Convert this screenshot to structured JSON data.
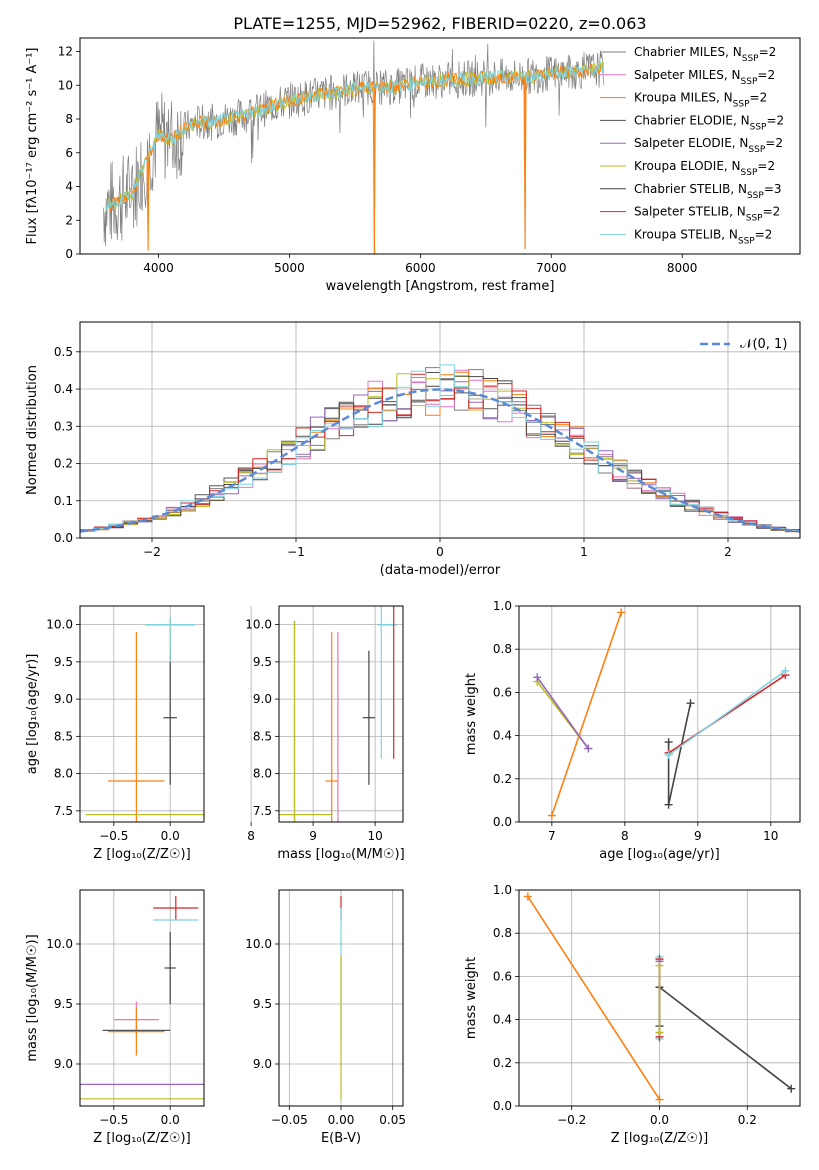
{
  "figure_title": "PLATE=1255, MJD=52962, FIBERID=0220, z=0.063",
  "series_styles": [
    {
      "name": "Chabrier MILES",
      "nssp": "2",
      "color": "#7f7f7f"
    },
    {
      "name": "Salpeter MILES",
      "nssp": "2",
      "color": "#e377c2"
    },
    {
      "name": "Kroupa MILES",
      "nssp": "2",
      "color": "#ff7f0e"
    },
    {
      "name": "Chabrier ELODIE",
      "nssp": "2",
      "color": "#555555"
    },
    {
      "name": "Salpeter ELODIE",
      "nssp": "2",
      "color": "#9467bd"
    },
    {
      "name": "Kroupa ELODIE",
      "nssp": "2",
      "color": "#bcbd22"
    },
    {
      "name": "Chabrier STELIB",
      "nssp": "3",
      "color": "#444444"
    },
    {
      "name": "Salpeter STELIB",
      "nssp": "2",
      "color": "#d62728"
    },
    {
      "name": "Kroupa STELIB",
      "nssp": "2",
      "color": "#7fd3e0"
    }
  ],
  "chart_data": [
    {
      "id": "spectrum",
      "type": "line",
      "xlabel": "wavelength [Angstrom, rest frame]",
      "ylabel": "Flux [fλ10⁻¹⁷ erg cm⁻² s⁻¹ A⁻¹]",
      "xlim": [
        3400,
        8900
      ],
      "ylim": [
        0,
        12.8
      ],
      "xticks": [
        "4000",
        "5000",
        "6000",
        "7000",
        "8000"
      ],
      "yticks": [
        "0",
        "2",
        "4",
        "6",
        "8",
        "10",
        "12"
      ],
      "legend_position": "right",
      "continuum": {
        "x": [
          3600,
          3700,
          3800,
          3900,
          4000,
          4100,
          4200,
          4300,
          4400,
          4500,
          4600,
          4800,
          5000,
          5200,
          5400,
          5600,
          5800,
          6000,
          6200,
          6400,
          6600,
          6800,
          7000,
          7200,
          7400
        ],
        "y": [
          2.8,
          3.2,
          3.6,
          5.5,
          7.0,
          6.8,
          7.4,
          7.8,
          7.8,
          8.0,
          8.1,
          8.6,
          9.1,
          9.4,
          9.7,
          9.9,
          9.9,
          10.2,
          10.3,
          10.4,
          10.5,
          10.5,
          10.7,
          10.8,
          11.0
        ]
      },
      "model_dips": [
        {
          "x": 5650,
          "y": 0
        },
        {
          "x": 6800,
          "y": 0.3
        },
        {
          "x": 3920,
          "y": 0.2
        }
      ]
    },
    {
      "id": "residuals",
      "type": "bar",
      "xlabel": "(data-model)/error",
      "ylabel": "Normed distribution",
      "xlim": [
        -2.5,
        2.5
      ],
      "ylim": [
        0,
        0.58
      ],
      "xticks": [
        "−2",
        "−1",
        "0",
        "1",
        "2"
      ],
      "yticks": [
        "0.0",
        "0.1",
        "0.2",
        "0.3",
        "0.4",
        "0.5"
      ],
      "grid": true,
      "legend_position": "top-right",
      "reference_label": "𝒩(0, 1)",
      "reference_color": "#5b8bd6",
      "bin_edges_start": -2.5,
      "bin_width": 0.1
    },
    {
      "id": "z-vs-age",
      "type": "scatter",
      "xlabel": "Z [log₁₀(Z/Z☉)]",
      "ylabel": "age  [log₁₀(age/yr)]",
      "xlim": [
        -0.8,
        0.3
      ],
      "ylim": [
        7.35,
        10.25
      ],
      "xticks": [
        "−0.5",
        "0.0"
      ],
      "yticks": [
        "7.5",
        "8.0",
        "8.5",
        "9.0",
        "9.5",
        "10.0"
      ],
      "grid": true,
      "points": [
        {
          "x": 0.0,
          "y": 10.0,
          "xerr": 0.22,
          "yerr": 0,
          "color": "#d62728"
        },
        {
          "x": 0.0,
          "y": 10.0,
          "xerr": 0.22,
          "yerr": 0,
          "color": "#7fd3e0"
        },
        {
          "x": 0.0,
          "y": 8.75,
          "xerr": 0.06,
          "yerr": 0.9,
          "color": "#444444"
        },
        {
          "x": -0.3,
          "y": 7.9,
          "xerr": 0.25,
          "yerr": 2.0,
          "color": "#ff7f0e"
        },
        {
          "x": 0.0,
          "y": 7.45,
          "xerr": 0.75,
          "yerr": 0,
          "color": "#9467bd"
        },
        {
          "x": 0.0,
          "y": 7.45,
          "xerr": 0.75,
          "yerr": 0,
          "color": "#bcbd22"
        },
        {
          "x": 0.0,
          "y": 9.8,
          "xerr": 0,
          "yerr": 0.3,
          "color": "#bcbd22"
        },
        {
          "x": 0.0,
          "y": 9.8,
          "xerr": 0,
          "yerr": 0.3,
          "color": "#7fd3e0"
        }
      ]
    },
    {
      "id": "mass-vs-age",
      "type": "scatter",
      "xlabel": "mass [log₁₀(M/M☉)]",
      "ylabel": "",
      "xlim": [
        8.45,
        10.45
      ],
      "ylim": [
        7.35,
        10.25
      ],
      "xticks": [
        "8",
        "9",
        "10"
      ],
      "yticks": [
        "7.5",
        "8.0",
        "8.5",
        "9.0",
        "9.5",
        "10.0"
      ],
      "grid": true,
      "points": [
        {
          "x": 10.2,
          "y": 10.0,
          "xerr": 0.15,
          "yerr": 0,
          "color": "#d62728"
        },
        {
          "x": 10.2,
          "y": 10.0,
          "xerr": 0.15,
          "yerr": 0,
          "color": "#7fd3e0"
        },
        {
          "x": 9.9,
          "y": 8.75,
          "xerr": 0.1,
          "yerr": 0.9,
          "color": "#444444"
        },
        {
          "x": 9.3,
          "y": 7.9,
          "xerr": 0.1,
          "yerr": 2.0,
          "color": "#ff7f0e"
        },
        {
          "x": 9.4,
          "y": 8.5,
          "xerr": 0,
          "yerr": 1.4,
          "color": "#e377c2"
        },
        {
          "x": 8.7,
          "y": 7.45,
          "xerr": 0.6,
          "yerr": 2.6,
          "color": "#9467bd"
        },
        {
          "x": 8.7,
          "y": 7.45,
          "xerr": 0.6,
          "yerr": 2.6,
          "color": "#bcbd22"
        },
        {
          "x": 10.3,
          "y": 9.4,
          "xerr": 0,
          "yerr": 1.2,
          "color": "#d62728"
        },
        {
          "x": 10.1,
          "y": 9.4,
          "xerr": 0,
          "yerr": 1.2,
          "color": "#7fd3e0"
        }
      ]
    },
    {
      "id": "age-weights",
      "type": "line",
      "xlabel": "age  [log₁₀(age/yr)]",
      "ylabel": "mass weight",
      "xlim": [
        6.55,
        10.4
      ],
      "ylim": [
        0,
        1.0
      ],
      "xticks": [
        "7",
        "8",
        "9",
        "10"
      ],
      "yticks": [
        "0.0",
        "0.2",
        "0.4",
        "0.6",
        "0.8",
        "1.0"
      ],
      "grid": true,
      "series": [
        {
          "color": "#ff7f0e",
          "x": [
            7.0,
            7.95
          ],
          "y": [
            0.03,
            0.97
          ]
        },
        {
          "color": "#bcbd22",
          "x": [
            6.8,
            7.5
          ],
          "y": [
            0.65,
            0.34
          ]
        },
        {
          "color": "#9467bd",
          "x": [
            6.8,
            7.5
          ],
          "y": [
            0.67,
            0.34
          ]
        },
        {
          "color": "#444444",
          "x": [
            8.6,
            8.6,
            8.9
          ],
          "y": [
            0.37,
            0.08,
            0.55
          ]
        },
        {
          "color": "#d62728",
          "x": [
            8.6,
            10.2
          ],
          "y": [
            0.32,
            0.68
          ]
        },
        {
          "color": "#7fd3e0",
          "x": [
            8.6,
            10.2
          ],
          "y": [
            0.31,
            0.7
          ]
        }
      ]
    },
    {
      "id": "z-vs-mass",
      "type": "scatter",
      "xlabel": "Z [log₁₀(Z/Z☉)]",
      "ylabel": "mass [log₁₀(M/M☉)]",
      "xlim": [
        -0.8,
        0.3
      ],
      "ylim": [
        8.65,
        10.45
      ],
      "xticks": [
        "−0.5",
        "0.0"
      ],
      "yticks": [
        "9.0",
        "9.5",
        "10.0"
      ],
      "grid": true,
      "points": [
        {
          "x": 0.05,
          "y": 10.3,
          "xerr": 0.2,
          "yerr": 0.1,
          "color": "#d62728"
        },
        {
          "x": 0.05,
          "y": 10.2,
          "xerr": 0.2,
          "yerr": 0,
          "color": "#7fd3e0"
        },
        {
          "x": 0.0,
          "y": 9.8,
          "xerr": 0.05,
          "yerr": 0.3,
          "color": "#444444"
        },
        {
          "x": -0.3,
          "y": 9.37,
          "xerr": 0.2,
          "yerr": 0.15,
          "color": "#e377c2"
        },
        {
          "x": -0.3,
          "y": 9.27,
          "xerr": 0.25,
          "yerr": 0.2,
          "color": "#ff7f0e"
        },
        {
          "x": -0.3,
          "y": 9.28,
          "xerr": 0.3,
          "yerr": 0,
          "color": "#555555"
        },
        {
          "x": -0.3,
          "y": 8.83,
          "xerr": 0.8,
          "yerr": 0,
          "color": "#9467bd"
        },
        {
          "x": -0.3,
          "y": 8.71,
          "xerr": 0.8,
          "yerr": 0,
          "color": "#bcbd22"
        }
      ]
    },
    {
      "id": "ebv-vs-mass",
      "type": "scatter",
      "xlabel": "E(B-V)",
      "ylabel": "",
      "xlim": [
        -0.06,
        0.06
      ],
      "ylim": [
        8.65,
        10.45
      ],
      "xticks": [
        "−0.05",
        "0.00",
        "0.05"
      ],
      "yticks": [
        "9.0",
        "9.5",
        "10.0"
      ],
      "grid": true,
      "points": [
        {
          "x": 0.0,
          "y": 10.3,
          "xerr": 0,
          "yerr": 0.1,
          "color": "#d62728"
        },
        {
          "x": 0.0,
          "y": 9.75,
          "xerr": 0,
          "yerr": 0.55,
          "color": "#7fd3e0"
        },
        {
          "x": 0.0,
          "y": 9.3,
          "xerr": 0,
          "yerr": 0.6,
          "color": "#bcbd22"
        }
      ]
    },
    {
      "id": "z-weights",
      "type": "line",
      "xlabel": "Z [log₁₀(Z/Z☉)]",
      "ylabel": "mass weight",
      "xlim": [
        -0.32,
        0.32
      ],
      "ylim": [
        0,
        1.0
      ],
      "xticks": [
        "−0.2",
        "0.0",
        "0.2"
      ],
      "yticks": [
        "0.0",
        "0.2",
        "0.4",
        "0.6",
        "0.8",
        "1.0"
      ],
      "grid": true,
      "series": [
        {
          "color": "#ff7f0e",
          "x": [
            -0.3,
            0.0
          ],
          "y": [
            0.97,
            0.03
          ]
        },
        {
          "color": "#444444",
          "x": [
            0.0,
            0.3
          ],
          "y": [
            0.55,
            0.08
          ]
        },
        {
          "color": "#7fd3e0",
          "x": [
            0.0,
            0.0
          ],
          "y": [
            0.31,
            0.69
          ]
        },
        {
          "color": "#d62728",
          "x": [
            0.0,
            0.0
          ],
          "y": [
            0.32,
            0.68
          ]
        },
        {
          "color": "#444444",
          "x": [
            0.0,
            0.0
          ],
          "y": [
            0.37,
            0.55
          ]
        },
        {
          "color": "#9467bd",
          "x": [
            0.0,
            0.0
          ],
          "y": [
            0.34,
            0.67
          ]
        },
        {
          "color": "#bcbd22",
          "x": [
            0.0,
            0.0
          ],
          "y": [
            0.34,
            0.65
          ]
        }
      ]
    }
  ]
}
